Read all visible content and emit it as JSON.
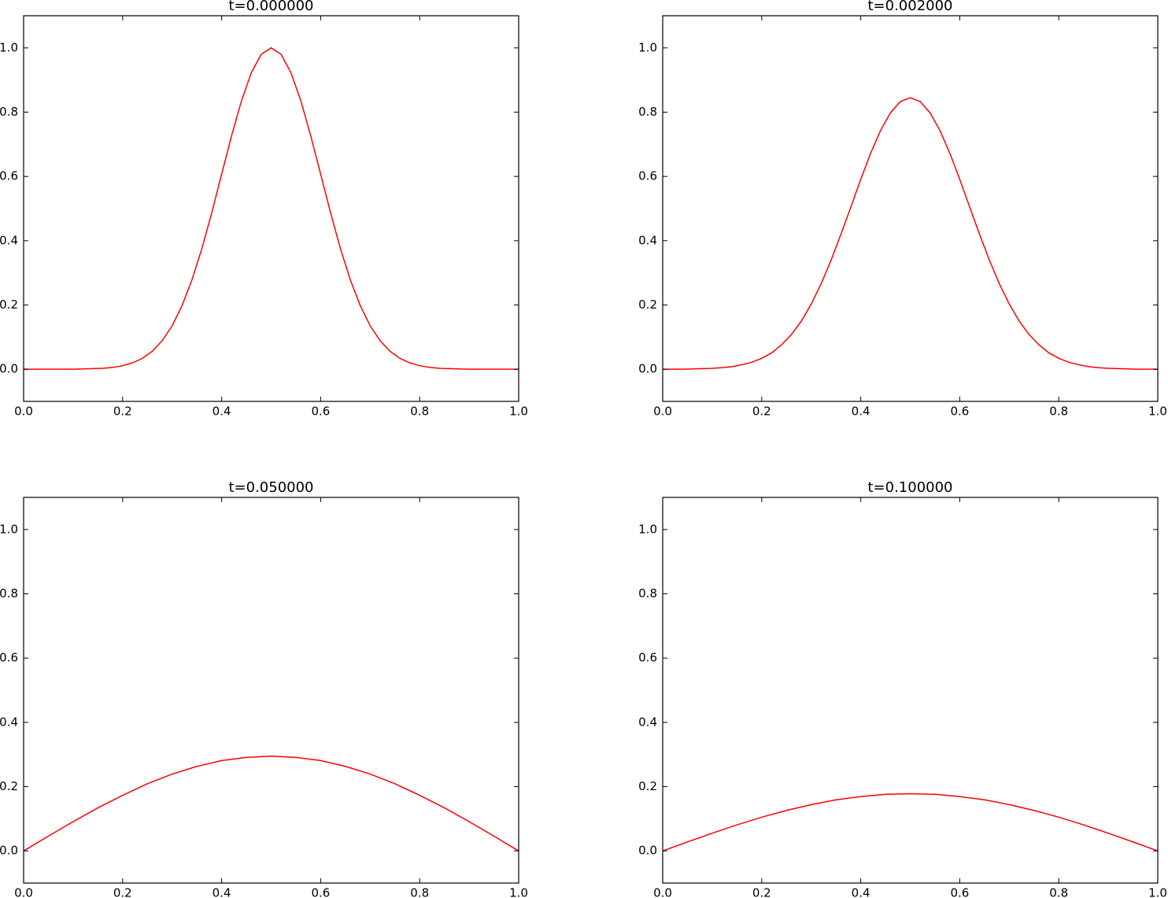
{
  "chart_data": [
    {
      "type": "line",
      "title": "t=0.000000",
      "color": "#ff0000",
      "x": [
        0,
        0.02,
        0.04,
        0.06,
        0.08,
        0.1,
        0.12,
        0.14,
        0.16,
        0.18,
        0.2,
        0.22,
        0.24,
        0.26,
        0.28,
        0.3,
        0.32,
        0.34,
        0.36,
        0.38,
        0.4,
        0.42,
        0.44,
        0.46,
        0.48,
        0.5,
        0.52,
        0.54,
        0.56,
        0.58,
        0.6,
        0.62,
        0.64,
        0.66,
        0.68,
        0.7,
        0.72,
        0.74,
        0.76,
        0.78,
        0.8,
        0.82,
        0.84,
        0.86,
        0.88,
        0.9,
        0.92,
        0.94,
        0.96,
        0.98,
        1
      ],
      "values": [
        0,
        0,
        0,
        0,
        0,
        0,
        0.001,
        0.002,
        0.003,
        0.006,
        0.011,
        0.02,
        0.034,
        0.056,
        0.089,
        0.135,
        0.198,
        0.278,
        0.375,
        0.487,
        0.607,
        0.726,
        0.835,
        0.923,
        0.98,
        1,
        0.98,
        0.923,
        0.835,
        0.726,
        0.607,
        0.487,
        0.375,
        0.278,
        0.198,
        0.135,
        0.089,
        0.056,
        0.034,
        0.02,
        0.011,
        0.006,
        0.003,
        0.002,
        0.001,
        0,
        0,
        0,
        0,
        0,
        0
      ],
      "xlim": [
        0,
        1
      ],
      "ylim": [
        -0.1,
        1.1
      ],
      "xticks": [
        {
          "value": 0,
          "label": "0.0"
        },
        0.2,
        0.4,
        0.6,
        0.8,
        {
          "value": 1,
          "label": "1.0"
        }
      ],
      "yticks": [
        {
          "value": 0,
          "label": "0.0"
        },
        0.2,
        0.4,
        0.6,
        0.8,
        {
          "value": 1,
          "label": "1.0"
        }
      ]
    },
    {
      "type": "line",
      "title": "t=0.002000",
      "color": "#ff0000",
      "x": [
        0,
        0.02,
        0.04,
        0.06,
        0.08,
        0.1,
        0.12,
        0.14,
        0.16,
        0.18,
        0.2,
        0.22,
        0.24,
        0.26,
        0.28,
        0.3,
        0.32,
        0.34,
        0.36,
        0.38,
        0.4,
        0.42,
        0.44,
        0.46,
        0.48,
        0.5,
        0.52,
        0.54,
        0.56,
        0.58,
        0.6,
        0.62,
        0.64,
        0.66,
        0.68,
        0.7,
        0.72,
        0.74,
        0.76,
        0.78,
        0.8,
        0.82,
        0.84,
        0.86,
        0.88,
        0.9,
        0.92,
        0.94,
        0.96,
        0.98,
        1
      ],
      "values": [
        0,
        0,
        0,
        0.001,
        0.002,
        0.003,
        0.005,
        0.008,
        0.014,
        0.022,
        0.034,
        0.051,
        0.076,
        0.108,
        0.15,
        0.203,
        0.266,
        0.339,
        0.42,
        0.505,
        0.591,
        0.672,
        0.743,
        0.798,
        0.833,
        0.845,
        0.833,
        0.798,
        0.743,
        0.672,
        0.591,
        0.505,
        0.42,
        0.339,
        0.266,
        0.203,
        0.15,
        0.108,
        0.076,
        0.051,
        0.034,
        0.022,
        0.014,
        0.008,
        0.005,
        0.003,
        0.002,
        0.001,
        0,
        0,
        0
      ],
      "xlim": [
        0,
        1
      ],
      "ylim": [
        -0.1,
        1.1
      ],
      "xticks": [
        {
          "value": 0,
          "label": "0.0"
        },
        0.2,
        0.4,
        0.6,
        0.8,
        {
          "value": 1,
          "label": "1.0"
        }
      ],
      "yticks": [
        {
          "value": 0,
          "label": "0.0"
        },
        0.2,
        0.4,
        0.6,
        0.8,
        {
          "value": 1,
          "label": "1.0"
        }
      ]
    },
    {
      "type": "line",
      "title": "t=0.050000",
      "color": "#ff0000",
      "x": [
        0,
        0.05,
        0.1,
        0.15,
        0.2,
        0.25,
        0.3,
        0.35,
        0.4,
        0.45,
        0.5,
        0.55,
        0.6,
        0.65,
        0.7,
        0.75,
        0.8,
        0.85,
        0.9,
        0.95,
        1
      ],
      "values": [
        0,
        0.046,
        0.091,
        0.134,
        0.173,
        0.209,
        0.239,
        0.263,
        0.281,
        0.291,
        0.295,
        0.291,
        0.281,
        0.263,
        0.239,
        0.209,
        0.173,
        0.134,
        0.091,
        0.046,
        0
      ],
      "xlim": [
        0,
        1
      ],
      "ylim": [
        -0.1,
        1.1
      ],
      "xticks": [
        {
          "value": 0,
          "label": "0.0"
        },
        0.2,
        0.4,
        0.6,
        0.8,
        {
          "value": 1,
          "label": "1.0"
        }
      ],
      "yticks": [
        {
          "value": 0,
          "label": "0.0"
        },
        0.2,
        0.4,
        0.6,
        0.8,
        {
          "value": 1,
          "label": "1.0"
        }
      ]
    },
    {
      "type": "line",
      "title": "t=0.100000",
      "color": "#ff0000",
      "x": [
        0,
        0.05,
        0.1,
        0.15,
        0.2,
        0.25,
        0.3,
        0.35,
        0.4,
        0.45,
        0.5,
        0.55,
        0.6,
        0.65,
        0.7,
        0.75,
        0.8,
        0.85,
        0.9,
        0.95,
        1
      ],
      "values": [
        0,
        0.028,
        0.055,
        0.081,
        0.105,
        0.126,
        0.144,
        0.159,
        0.169,
        0.176,
        0.178,
        0.176,
        0.169,
        0.159,
        0.144,
        0.126,
        0.105,
        0.081,
        0.055,
        0.028,
        0
      ],
      "xlim": [
        0,
        1
      ],
      "ylim": [
        -0.1,
        1.1
      ],
      "xticks": [
        {
          "value": 0,
          "label": "0.0"
        },
        0.2,
        0.4,
        0.6,
        0.8,
        {
          "value": 1,
          "label": "1.0"
        }
      ],
      "yticks": [
        {
          "value": 0,
          "label": "0.0"
        },
        0.2,
        0.4,
        0.6,
        0.8,
        {
          "value": 1,
          "label": "1.0"
        }
      ]
    }
  ]
}
